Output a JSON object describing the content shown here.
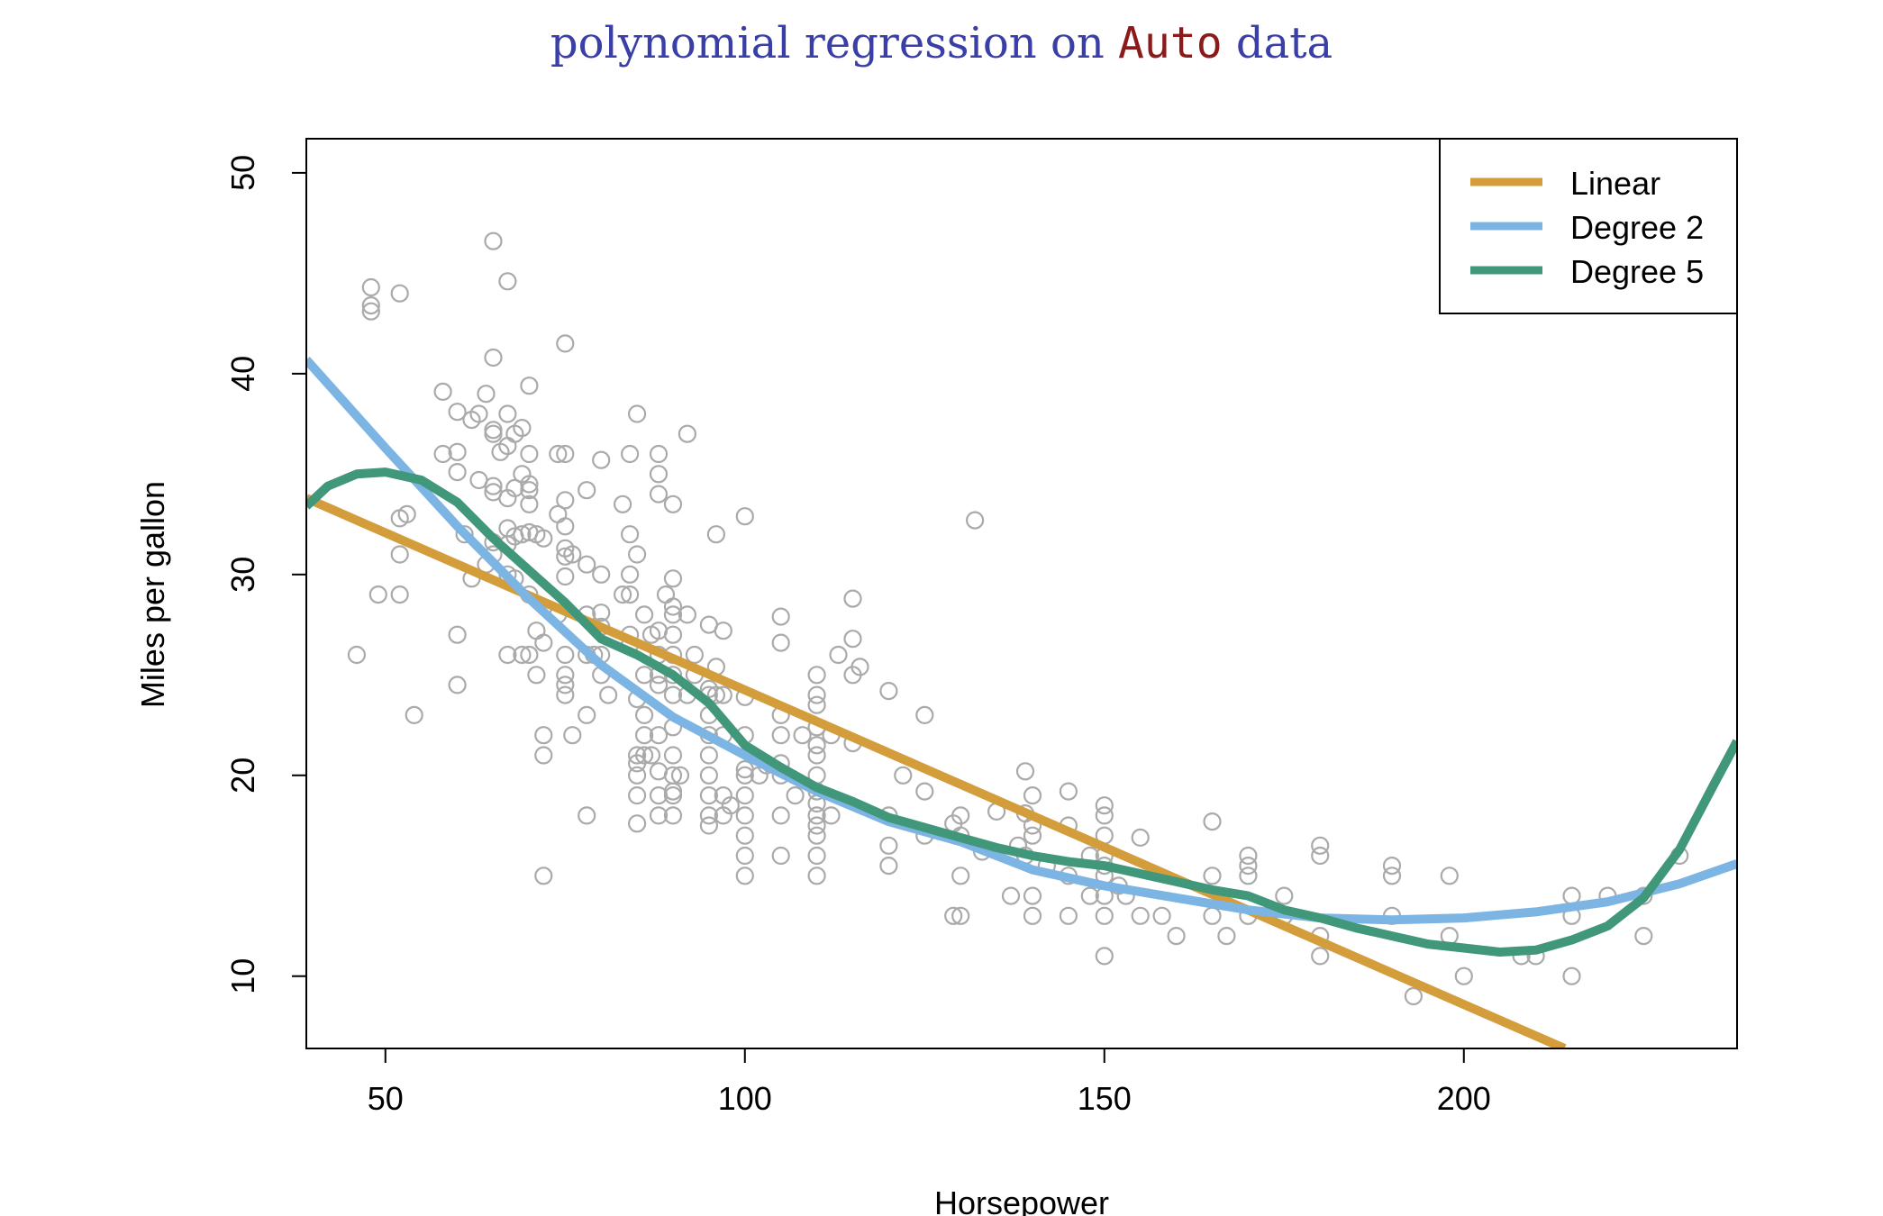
{
  "chart_data": {
    "type": "scatter",
    "title_parts": [
      {
        "text": "polynomial regression on ",
        "style": "serif",
        "color": "#3a3fa8"
      },
      {
        "text": "Auto",
        "style": "mono",
        "color": "#8b1a1a"
      },
      {
        "text": " data",
        "style": "serif",
        "color": "#3a3fa8"
      }
    ],
    "xlabel": "Horsepower",
    "ylabel": "Miles per gallon",
    "xlim": [
      39,
      238
    ],
    "ylim": [
      6.4,
      51.7
    ],
    "xticks": [
      50,
      100,
      150,
      200
    ],
    "yticks": [
      10,
      20,
      30,
      40,
      50
    ],
    "point_color": "#aaaaaa",
    "points": [
      [
        46,
        26
      ],
      [
        48,
        44.3
      ],
      [
        48,
        43.4
      ],
      [
        48,
        43.1
      ],
      [
        49,
        29
      ],
      [
        52,
        44
      ],
      [
        52,
        32.8
      ],
      [
        52,
        31
      ],
      [
        52,
        29
      ],
      [
        53,
        33
      ],
      [
        54,
        23
      ],
      [
        58,
        36
      ],
      [
        58,
        39.1
      ],
      [
        60,
        38.1
      ],
      [
        60,
        36.1
      ],
      [
        60,
        35.1
      ],
      [
        60,
        27
      ],
      [
        60,
        24.5
      ],
      [
        61,
        32
      ],
      [
        62,
        37.7
      ],
      [
        62,
        29.8
      ],
      [
        63,
        38
      ],
      [
        63,
        34.7
      ],
      [
        64,
        39
      ],
      [
        64,
        30.5
      ],
      [
        65,
        46.6
      ],
      [
        65,
        40.8
      ],
      [
        65,
        37.2
      ],
      [
        65,
        37
      ],
      [
        65,
        34.4
      ],
      [
        65,
        34.1
      ],
      [
        65,
        31.6
      ],
      [
        65,
        31
      ],
      [
        66,
        36.1
      ],
      [
        67,
        44.6
      ],
      [
        67,
        38
      ],
      [
        67,
        36.4
      ],
      [
        67,
        33.8
      ],
      [
        67,
        32.3
      ],
      [
        67,
        31.5
      ],
      [
        67,
        30
      ],
      [
        67,
        26
      ],
      [
        68,
        37
      ],
      [
        68,
        34.3
      ],
      [
        68,
        31.9
      ],
      [
        68,
        29.8
      ],
      [
        69,
        37.3
      ],
      [
        69,
        35
      ],
      [
        69,
        32
      ],
      [
        69,
        26
      ],
      [
        70,
        39.4
      ],
      [
        70,
        36
      ],
      [
        70,
        34.5
      ],
      [
        70,
        34.2
      ],
      [
        70,
        33.5
      ],
      [
        70,
        32.1
      ],
      [
        70,
        29
      ],
      [
        70,
        26
      ],
      [
        71,
        32
      ],
      [
        71,
        27.2
      ],
      [
        71,
        25
      ],
      [
        72,
        31.8
      ],
      [
        72,
        26.6
      ],
      [
        72,
        22
      ],
      [
        72,
        21
      ],
      [
        72,
        15
      ],
      [
        74,
        36
      ],
      [
        74,
        33
      ],
      [
        74,
        28
      ],
      [
        75,
        41.5
      ],
      [
        75,
        36
      ],
      [
        75,
        33.7
      ],
      [
        75,
        32.4
      ],
      [
        75,
        31.3
      ],
      [
        75,
        30.9
      ],
      [
        75,
        29.9
      ],
      [
        75,
        26
      ],
      [
        75,
        25
      ],
      [
        75,
        24.5
      ],
      [
        75,
        24
      ],
      [
        76,
        31
      ],
      [
        76,
        22
      ],
      [
        78,
        34.2
      ],
      [
        78,
        30.5
      ],
      [
        78,
        28
      ],
      [
        78,
        26
      ],
      [
        78,
        23
      ],
      [
        78,
        18
      ],
      [
        79,
        26
      ],
      [
        80,
        35.7
      ],
      [
        80,
        30
      ],
      [
        80,
        28.1
      ],
      [
        80,
        27.4
      ],
      [
        80,
        26
      ],
      [
        80,
        25
      ],
      [
        81,
        24
      ],
      [
        83,
        33.5
      ],
      [
        83,
        29
      ],
      [
        84,
        36
      ],
      [
        84,
        32
      ],
      [
        84,
        30
      ],
      [
        84,
        29
      ],
      [
        84,
        27
      ],
      [
        84,
        26.5
      ],
      [
        85,
        38
      ],
      [
        85,
        31
      ],
      [
        85,
        23.8
      ],
      [
        85,
        21
      ],
      [
        85,
        20.6
      ],
      [
        85,
        20
      ],
      [
        85,
        19
      ],
      [
        85,
        17.6
      ],
      [
        86,
        28
      ],
      [
        86,
        25
      ],
      [
        86,
        23
      ],
      [
        86,
        22
      ],
      [
        86,
        21
      ],
      [
        87,
        27
      ],
      [
        87,
        21
      ],
      [
        88,
        36
      ],
      [
        88,
        35
      ],
      [
        88,
        34
      ],
      [
        88,
        27.2
      ],
      [
        88,
        26
      ],
      [
        88,
        25
      ],
      [
        88,
        24.5
      ],
      [
        88,
        22
      ],
      [
        88,
        20.2
      ],
      [
        88,
        19
      ],
      [
        88,
        18
      ],
      [
        89,
        29
      ],
      [
        90,
        33.5
      ],
      [
        90,
        29.8
      ],
      [
        90,
        28.4
      ],
      [
        90,
        28
      ],
      [
        90,
        27
      ],
      [
        90,
        26
      ],
      [
        90,
        25
      ],
      [
        90,
        24
      ],
      [
        90,
        22.4
      ],
      [
        90,
        21
      ],
      [
        90,
        20
      ],
      [
        90,
        19.2
      ],
      [
        90,
        19
      ],
      [
        90,
        18
      ],
      [
        91,
        20
      ],
      [
        92,
        37
      ],
      [
        92,
        28
      ],
      [
        92,
        24
      ],
      [
        93,
        26
      ],
      [
        93,
        25
      ],
      [
        95,
        27.5
      ],
      [
        95,
        24.3
      ],
      [
        95,
        24
      ],
      [
        95,
        23
      ],
      [
        95,
        22
      ],
      [
        95,
        21
      ],
      [
        95,
        20
      ],
      [
        95,
        19
      ],
      [
        95,
        18
      ],
      [
        95,
        17.5
      ],
      [
        96,
        32
      ],
      [
        96,
        25.4
      ],
      [
        96,
        24
      ],
      [
        97,
        27.2
      ],
      [
        97,
        24
      ],
      [
        97,
        22
      ],
      [
        97,
        19
      ],
      [
        97,
        18
      ],
      [
        98,
        18.5
      ],
      [
        100,
        32.9
      ],
      [
        100,
        23.9
      ],
      [
        100,
        22
      ],
      [
        100,
        20.3
      ],
      [
        100,
        20
      ],
      [
        100,
        19
      ],
      [
        100,
        18
      ],
      [
        100,
        17
      ],
      [
        100,
        16
      ],
      [
        100,
        15
      ],
      [
        102,
        20
      ],
      [
        103,
        20.5
      ],
      [
        105,
        27.9
      ],
      [
        105,
        26.6
      ],
      [
        105,
        23
      ],
      [
        105,
        22
      ],
      [
        105,
        20.6
      ],
      [
        105,
        20
      ],
      [
        105,
        18
      ],
      [
        105,
        16
      ],
      [
        107,
        19
      ],
      [
        108,
        22
      ],
      [
        110,
        25
      ],
      [
        110,
        24
      ],
      [
        110,
        23.5
      ],
      [
        110,
        22.4
      ],
      [
        110,
        21.5
      ],
      [
        110,
        21
      ],
      [
        110,
        20
      ],
      [
        110,
        19.2
      ],
      [
        110,
        18.6
      ],
      [
        110,
        18
      ],
      [
        110,
        17.5
      ],
      [
        110,
        17
      ],
      [
        110,
        16
      ],
      [
        110,
        15
      ],
      [
        112,
        22
      ],
      [
        112,
        18
      ],
      [
        113,
        26
      ],
      [
        115,
        28.8
      ],
      [
        115,
        26.8
      ],
      [
        115,
        25
      ],
      [
        115,
        21.6
      ],
      [
        116,
        25.4
      ],
      [
        120,
        24.2
      ],
      [
        120,
        18
      ],
      [
        120,
        16.5
      ],
      [
        120,
        15.5
      ],
      [
        122,
        20
      ],
      [
        125,
        23
      ],
      [
        125,
        19.2
      ],
      [
        125,
        17
      ],
      [
        129,
        17.6
      ],
      [
        129,
        13
      ],
      [
        130,
        18
      ],
      [
        130,
        17
      ],
      [
        130,
        15
      ],
      [
        130,
        13
      ],
      [
        132,
        32.7
      ],
      [
        133,
        16.2
      ],
      [
        135,
        18.2
      ],
      [
        137,
        14
      ],
      [
        138,
        16.5
      ],
      [
        139,
        20.2
      ],
      [
        139,
        18.1
      ],
      [
        139,
        16
      ],
      [
        140,
        19
      ],
      [
        140,
        17.5
      ],
      [
        140,
        17
      ],
      [
        140,
        14
      ],
      [
        140,
        13
      ],
      [
        142,
        15.5
      ],
      [
        145,
        19.2
      ],
      [
        145,
        17.5
      ],
      [
        145,
        15
      ],
      [
        145,
        13
      ],
      [
        148,
        16
      ],
      [
        148,
        14
      ],
      [
        150,
        18.5
      ],
      [
        150,
        18
      ],
      [
        150,
        17
      ],
      [
        150,
        16
      ],
      [
        150,
        15.5
      ],
      [
        150,
        15
      ],
      [
        150,
        14
      ],
      [
        150,
        13
      ],
      [
        150,
        11
      ],
      [
        152,
        14.5
      ],
      [
        153,
        14
      ],
      [
        155,
        16.9
      ],
      [
        155,
        13
      ],
      [
        158,
        13
      ],
      [
        160,
        12
      ],
      [
        165,
        17.7
      ],
      [
        165,
        15
      ],
      [
        165,
        13
      ],
      [
        167,
        12
      ],
      [
        170,
        16
      ],
      [
        170,
        15.5
      ],
      [
        170,
        15
      ],
      [
        170,
        13
      ],
      [
        175,
        14
      ],
      [
        175,
        13
      ],
      [
        180,
        16.5
      ],
      [
        180,
        16
      ],
      [
        180,
        12
      ],
      [
        180,
        11
      ],
      [
        190,
        15.5
      ],
      [
        190,
        15
      ],
      [
        190,
        13
      ],
      [
        193,
        9
      ],
      [
        198,
        15
      ],
      [
        198,
        12
      ],
      [
        200,
        10
      ],
      [
        208,
        11
      ],
      [
        210,
        11
      ],
      [
        215,
        14
      ],
      [
        215,
        13
      ],
      [
        215,
        10
      ],
      [
        220,
        14
      ],
      [
        225,
        14
      ],
      [
        225,
        12
      ],
      [
        230,
        16
      ]
    ],
    "series": [
      {
        "name": "Linear",
        "color": "#d49d3c",
        "x": [
          39,
          214
        ],
        "y": [
          33.8,
          6.4
        ]
      },
      {
        "name": "Degree 2",
        "color": "#7cb4e3",
        "x": [
          39,
          50,
          60,
          70,
          80,
          90,
          100,
          110,
          120,
          130,
          140,
          150,
          160,
          170,
          180,
          190,
          200,
          210,
          220,
          230,
          238
        ],
        "y": [
          40.7,
          36.3,
          32.4,
          28.8,
          25.5,
          22.9,
          21.0,
          19.2,
          17.7,
          16.7,
          15.3,
          14.5,
          13.9,
          13.3,
          12.9,
          12.8,
          12.9,
          13.2,
          13.7,
          14.6,
          15.6
        ]
      },
      {
        "name": "Degree 5",
        "color": "#40977a",
        "x": [
          39,
          42,
          46,
          50,
          55,
          60,
          65,
          70,
          75,
          80,
          85,
          90,
          95,
          100,
          105,
          110,
          115,
          120,
          125,
          130,
          135,
          140,
          145,
          150,
          155,
          160,
          165,
          170,
          175,
          180,
          185,
          190,
          195,
          200,
          205,
          210,
          215,
          220,
          225,
          230,
          235,
          238
        ],
        "y": [
          33.4,
          34.4,
          35.0,
          35.1,
          34.7,
          33.6,
          31.8,
          30.2,
          28.6,
          26.8,
          26.0,
          25.0,
          23.6,
          21.5,
          20.4,
          19.4,
          18.7,
          17.9,
          17.4,
          16.9,
          16.4,
          16.0,
          15.7,
          15.5,
          15.1,
          14.7,
          14.3,
          14.0,
          13.3,
          12.9,
          12.4,
          12.0,
          11.6,
          11.4,
          11.2,
          11.3,
          11.8,
          12.5,
          13.9,
          16.3,
          19.7,
          21.7
        ]
      }
    ],
    "legend_position": "top-right"
  }
}
